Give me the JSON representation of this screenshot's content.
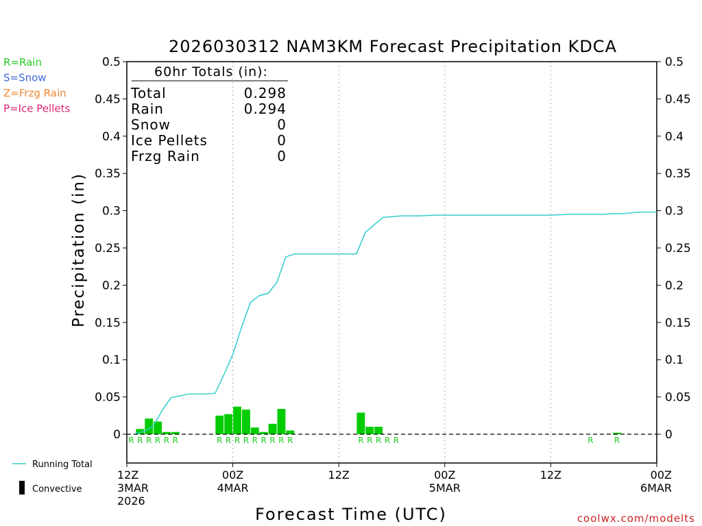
{
  "chart_data": {
    "type": "bar",
    "title": "2026030312 NAM3KM Forecast Precipitation KDCA",
    "xlabel": "Forecast Time (UTC)",
    "ylabel": "Precipitation (in)",
    "ylim": [
      0,
      0.5
    ],
    "xlim_hours": [
      0,
      60
    ],
    "y_ticks": [
      "0",
      "0.05",
      "0.1",
      "0.15",
      "0.2",
      "0.25",
      "0.3",
      "0.35",
      "0.4",
      "0.45",
      "0.5"
    ],
    "x_ticks": [
      {
        "hour": 0,
        "line1": "12Z",
        "line2": "3MAR",
        "line3": "2026"
      },
      {
        "hour": 12,
        "line1": "00Z",
        "line2": "4MAR",
        "line3": ""
      },
      {
        "hour": 24,
        "line1": "12Z",
        "line2": "",
        "line3": ""
      },
      {
        "hour": 36,
        "line1": "00Z",
        "line2": "5MAR",
        "line3": ""
      },
      {
        "hour": 48,
        "line1": "12Z",
        "line2": "",
        "line3": ""
      },
      {
        "hour": 60,
        "line1": "00Z",
        "line2": "6MAR",
        "line3": ""
      }
    ],
    "grid_hours": [
      12,
      24,
      36,
      48
    ],
    "hourly_bars": [
      {
        "hour": 2,
        "value": 0.007
      },
      {
        "hour": 3,
        "value": 0.021
      },
      {
        "hour": 4,
        "value": 0.017
      },
      {
        "hour": 5,
        "value": 0.003
      },
      {
        "hour": 6,
        "value": 0.003
      },
      {
        "hour": 11,
        "value": 0.025
      },
      {
        "hour": 12,
        "value": 0.027
      },
      {
        "hour": 13,
        "value": 0.037
      },
      {
        "hour": 14,
        "value": 0.033
      },
      {
        "hour": 15,
        "value": 0.009
      },
      {
        "hour": 16,
        "value": 0.003
      },
      {
        "hour": 17,
        "value": 0.014
      },
      {
        "hour": 18,
        "value": 0.034
      },
      {
        "hour": 19,
        "value": 0.005
      },
      {
        "hour": 27,
        "value": 0.029
      },
      {
        "hour": 28,
        "value": 0.01
      },
      {
        "hour": 29,
        "value": 0.01
      },
      {
        "hour": 56,
        "value": 0.002
      }
    ],
    "running_total": {
      "name": "Running Total",
      "hours": [
        1,
        2,
        3,
        4,
        5,
        7,
        8,
        9,
        10,
        11,
        12,
        13,
        14,
        15,
        16,
        17,
        18,
        19,
        26,
        27,
        29,
        31,
        33,
        35,
        36,
        38,
        40,
        42,
        44,
        46,
        48,
        50,
        53,
        54,
        55,
        56,
        58,
        60
      ],
      "values": [
        0.001,
        0.004,
        0.011,
        0.032,
        0.049,
        0.054,
        0.054,
        0.054,
        0.055,
        0.08,
        0.107,
        0.144,
        0.177,
        0.186,
        0.189,
        0.204,
        0.238,
        0.242,
        0.242,
        0.271,
        0.291,
        0.293,
        0.293,
        0.294,
        0.294,
        0.294,
        0.294,
        0.294,
        0.294,
        0.294,
        0.294,
        0.295,
        0.295,
        0.295,
        0.296,
        0.296,
        0.298,
        0.298
      ]
    },
    "type_markers": [
      {
        "hour": 1,
        "label": "R"
      },
      {
        "hour": 2,
        "label": "R"
      },
      {
        "hour": 3,
        "label": "R"
      },
      {
        "hour": 4,
        "label": "R"
      },
      {
        "hour": 5,
        "label": "R"
      },
      {
        "hour": 6,
        "label": "R"
      },
      {
        "hour": 11,
        "label": "R"
      },
      {
        "hour": 12,
        "label": "R"
      },
      {
        "hour": 13,
        "label": "R"
      },
      {
        "hour": 14,
        "label": "R"
      },
      {
        "hour": 15,
        "label": "R"
      },
      {
        "hour": 16,
        "label": "R"
      },
      {
        "hour": 17,
        "label": "R"
      },
      {
        "hour": 18,
        "label": "R"
      },
      {
        "hour": 19,
        "label": "R"
      },
      {
        "hour": 27,
        "label": "R"
      },
      {
        "hour": 28,
        "label": "R"
      },
      {
        "hour": 29,
        "label": "R"
      },
      {
        "hour": 30,
        "label": "R"
      },
      {
        "hour": 31,
        "label": "R"
      },
      {
        "hour": 53,
        "label": "R"
      },
      {
        "hour": 56,
        "label": "R"
      }
    ],
    "type_legend": [
      {
        "text": "R=Rain",
        "color": "#22cc22"
      },
      {
        "text": "S=Snow",
        "color": "#4466dd"
      },
      {
        "text": "Z=Frzg Rain",
        "color": "#ee8833"
      },
      {
        "text": "P=Ice Pellets",
        "color": "#dd2277"
      }
    ],
    "totals": {
      "header": "60hr Totals (in):",
      "rows": [
        {
          "label": "Total",
          "value": "0.298"
        },
        {
          "label": "Rain",
          "value": "0.294"
        },
        {
          "label": "Snow",
          "value": "0"
        },
        {
          "label": "Ice Pellets",
          "value": "0"
        },
        {
          "label": "Frzg Rain",
          "value": "0"
        }
      ]
    },
    "bottom_legend": [
      {
        "label": "Running Total",
        "kind": "line",
        "color": "#33cccc"
      },
      {
        "label": "Convective",
        "kind": "bar",
        "color": "#000000"
      }
    ],
    "credit": "coolwx.com/modelts",
    "colors": {
      "bar": "#00cc00",
      "running_total": "#33cccc",
      "rain_marker": "#22cc22",
      "credit": "#cc2222",
      "grid": "#aaaaaa"
    }
  }
}
